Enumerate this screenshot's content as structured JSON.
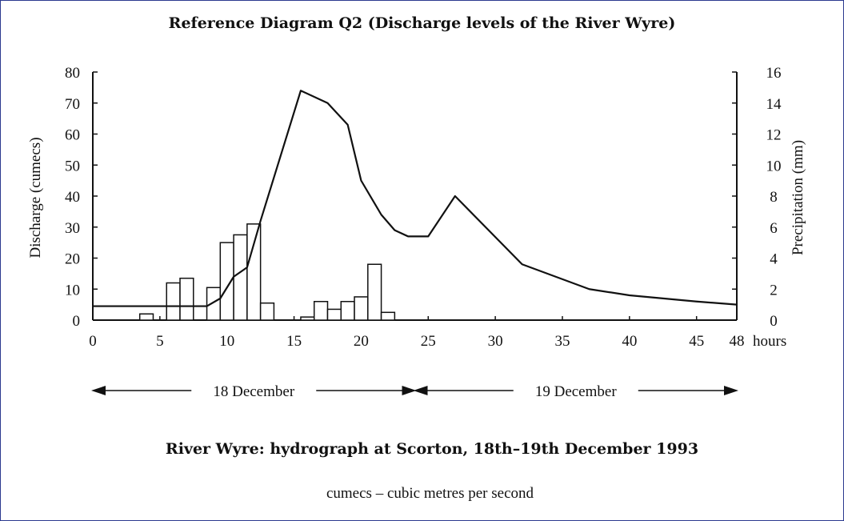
{
  "title": "Reference Diagram Q2 (Discharge levels of the River Wyre)",
  "caption": "River Wyre: hydrograph at Scorton, 18th–19th December 1993",
  "note": "cumecs – cubic metres per second",
  "chart_data": {
    "type": "bar+line",
    "title": "Reference Diagram Q2 (Discharge levels of the River Wyre)",
    "xlabel": "hours",
    "ylabel_left": "Discharge (cumecs)",
    "ylabel_right": "Precipitation (mm)",
    "xlim": [
      0,
      48
    ],
    "ylim_left": [
      0,
      80
    ],
    "ylim_right": [
      0,
      16
    ],
    "x_ticks": [
      0,
      5,
      10,
      15,
      20,
      25,
      30,
      35,
      40,
      45,
      48
    ],
    "x_tick_labels": [
      "0",
      "5",
      "10",
      "15",
      "20",
      "25",
      "30",
      "35",
      "40",
      "45",
      "48"
    ],
    "y_left_ticks": [
      0,
      10,
      20,
      30,
      40,
      50,
      60,
      70,
      80
    ],
    "y_right_ticks": [
      0,
      2,
      4,
      6,
      8,
      10,
      12,
      14,
      16
    ],
    "grid": false,
    "discharge": {
      "x": [
        0,
        3.5,
        8.5,
        9.5,
        10.5,
        11.5,
        12.5,
        15.5,
        17.5,
        19,
        20,
        21.5,
        22.5,
        23.5,
        24,
        25,
        27,
        32,
        37,
        40,
        45,
        48
      ],
      "y": [
        4.5,
        4.5,
        4.5,
        7,
        14,
        17,
        32,
        74,
        70,
        63,
        45,
        34,
        29,
        27,
        27,
        27,
        40,
        18,
        10,
        8,
        6,
        5
      ]
    },
    "precipitation": {
      "bars": [
        {
          "start": 3.5,
          "end": 4.5,
          "value": 0.4
        },
        {
          "start": 4.5,
          "end": 5.5,
          "value": 0
        },
        {
          "start": 5.5,
          "end": 6.5,
          "value": 2.4
        },
        {
          "start": 6.5,
          "end": 7.5,
          "value": 2.7
        },
        {
          "start": 8.5,
          "end": 9.5,
          "value": 2.1
        },
        {
          "start": 9.5,
          "end": 10.5,
          "value": 5
        },
        {
          "start": 10.5,
          "end": 11.5,
          "value": 5.5
        },
        {
          "start": 11.5,
          "end": 12.5,
          "value": 6.2
        },
        {
          "start": 12.5,
          "end": 13.5,
          "value": 1.1
        },
        {
          "start": 15.5,
          "end": 16.5,
          "value": 0.2
        },
        {
          "start": 16.5,
          "end": 17.5,
          "value": 1.2
        },
        {
          "start": 17.5,
          "end": 18.5,
          "value": 0.7
        },
        {
          "start": 18.5,
          "end": 19.5,
          "value": 1.2
        },
        {
          "start": 19.5,
          "end": 20.5,
          "value": 1.5
        },
        {
          "start": 20.5,
          "end": 21.5,
          "value": 3.6
        },
        {
          "start": 21.5,
          "end": 22.5,
          "value": 0.5
        }
      ]
    },
    "day_ranges": [
      {
        "label": "18 December",
        "start": 0,
        "end": 24
      },
      {
        "label": "19 December",
        "start": 24,
        "end": 48
      }
    ]
  }
}
